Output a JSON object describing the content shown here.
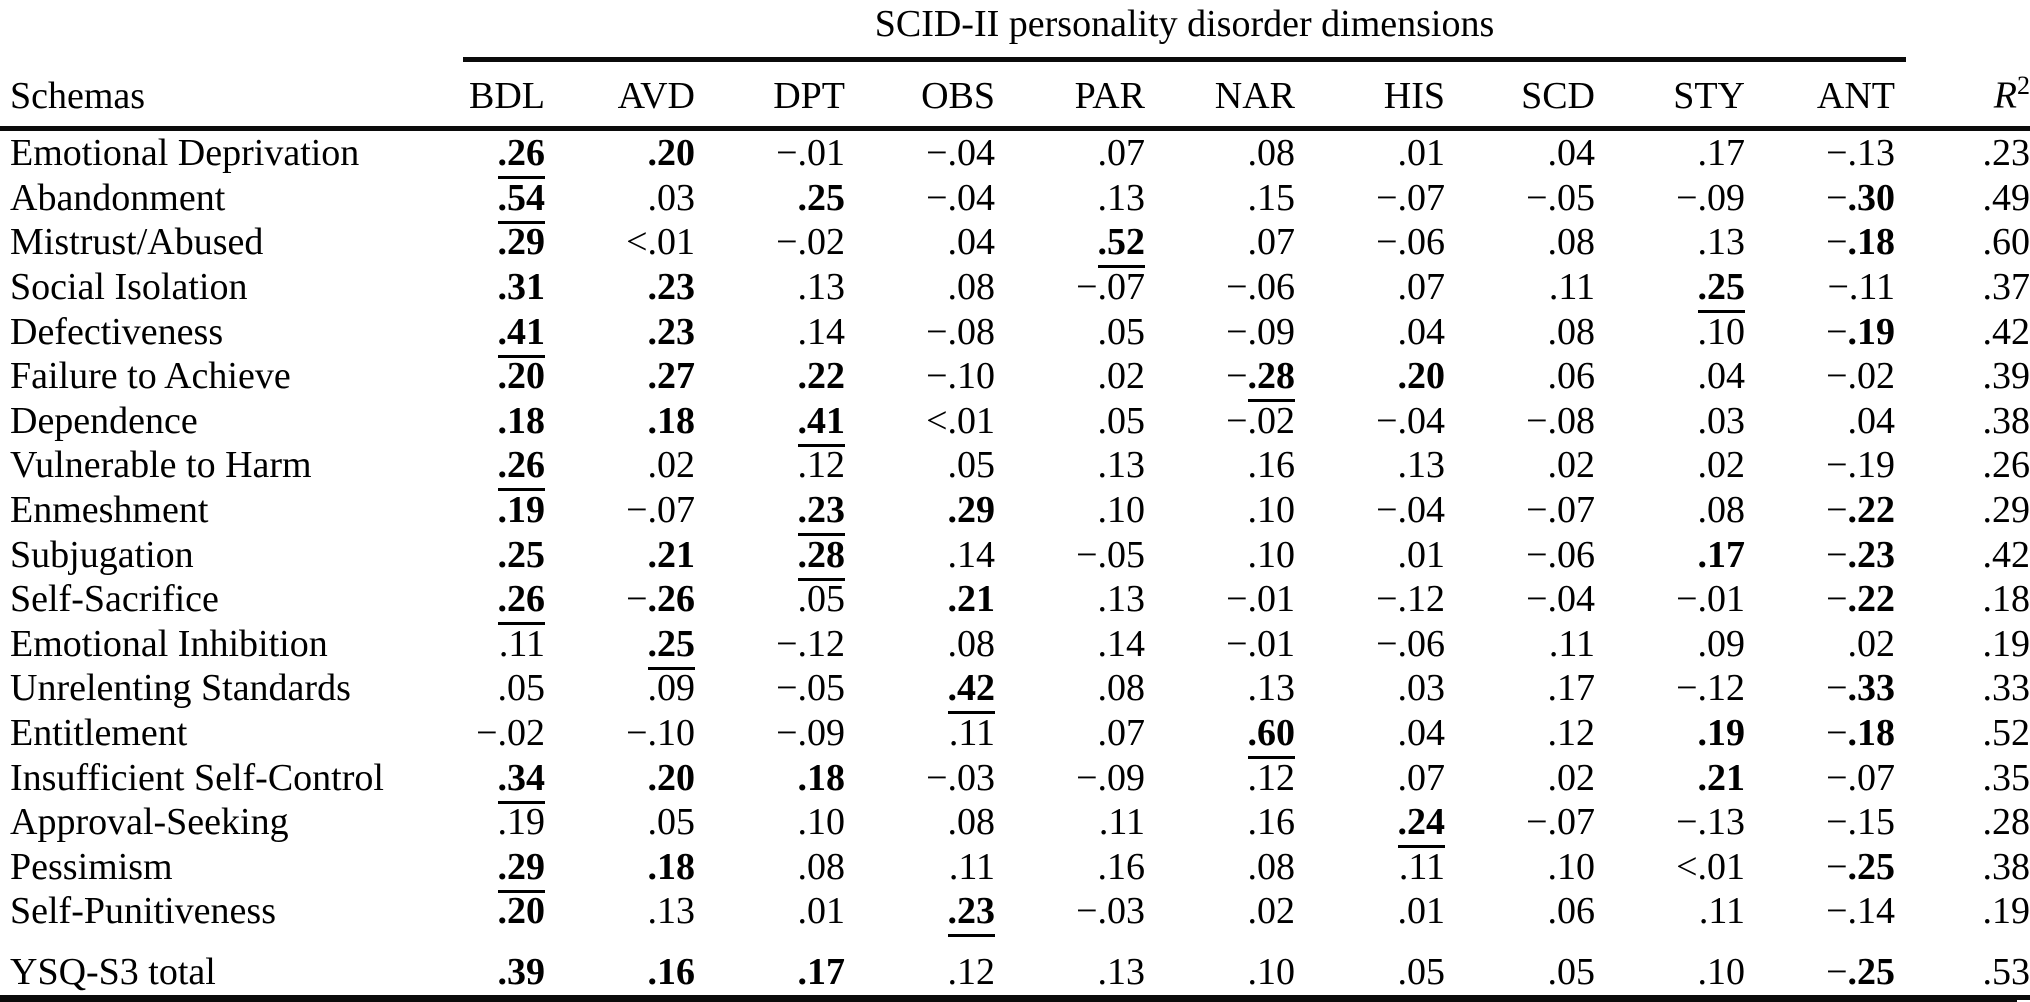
{
  "table": {
    "spanner_title": "SCID-II personality disorder dimensions",
    "schemas_header": "Schemas",
    "columns": [
      "BDL",
      "AVD",
      "DPT",
      "OBS",
      "PAR",
      "NAR",
      "HIS",
      "SCD",
      "STY",
      "ANT"
    ],
    "r2_header": {
      "base": "R",
      "sup": "2"
    },
    "rows": [
      {
        "label": "Emotional Deprivation",
        "cells": [
          {
            "v": ".26",
            "f": "bu"
          },
          {
            "v": ".20",
            "f": "b"
          },
          {
            "v": "−.01",
            "f": ""
          },
          {
            "v": "−.04",
            "f": ""
          },
          {
            "v": ".07",
            "f": ""
          },
          {
            "v": ".08",
            "f": ""
          },
          {
            "v": ".01",
            "f": ""
          },
          {
            "v": ".04",
            "f": ""
          },
          {
            "v": ".17",
            "f": ""
          },
          {
            "v": "−.13",
            "f": ""
          }
        ],
        "r2": ".23"
      },
      {
        "label": "Abandonment",
        "cells": [
          {
            "v": ".54",
            "f": "bu"
          },
          {
            "v": ".03",
            "f": ""
          },
          {
            "v": ".25",
            "f": "b"
          },
          {
            "v": "−.04",
            "f": ""
          },
          {
            "v": ".13",
            "f": ""
          },
          {
            "v": ".15",
            "f": ""
          },
          {
            "v": "−.07",
            "f": ""
          },
          {
            "v": "−.05",
            "f": ""
          },
          {
            "v": "−.09",
            "f": ""
          },
          {
            "v": "−.30",
            "f": "b"
          }
        ],
        "r2": ".49"
      },
      {
        "label": "Mistrust/Abused",
        "cells": [
          {
            "v": ".29",
            "f": "b"
          },
          {
            "v": "<.01",
            "f": ""
          },
          {
            "v": "−.02",
            "f": ""
          },
          {
            "v": ".04",
            "f": ""
          },
          {
            "v": ".52",
            "f": "bu"
          },
          {
            "v": ".07",
            "f": ""
          },
          {
            "v": "−.06",
            "f": ""
          },
          {
            "v": ".08",
            "f": ""
          },
          {
            "v": ".13",
            "f": ""
          },
          {
            "v": "−.18",
            "f": "b"
          }
        ],
        "r2": ".60"
      },
      {
        "label": "Social Isolation",
        "cells": [
          {
            "v": ".31",
            "f": "b"
          },
          {
            "v": ".23",
            "f": "b"
          },
          {
            "v": ".13",
            "f": ""
          },
          {
            "v": ".08",
            "f": ""
          },
          {
            "v": "−.07",
            "f": ""
          },
          {
            "v": "−.06",
            "f": ""
          },
          {
            "v": ".07",
            "f": ""
          },
          {
            "v": ".11",
            "f": ""
          },
          {
            "v": ".25",
            "f": "bu"
          },
          {
            "v": "−.11",
            "f": ""
          }
        ],
        "r2": ".37"
      },
      {
        "label": "Defectiveness",
        "cells": [
          {
            "v": ".41",
            "f": "bu"
          },
          {
            "v": ".23",
            "f": "b"
          },
          {
            "v": ".14",
            "f": ""
          },
          {
            "v": "−.08",
            "f": ""
          },
          {
            "v": ".05",
            "f": ""
          },
          {
            "v": "−.09",
            "f": ""
          },
          {
            "v": ".04",
            "f": ""
          },
          {
            "v": ".08",
            "f": ""
          },
          {
            "v": ".10",
            "f": ""
          },
          {
            "v": "−.19",
            "f": "b"
          }
        ],
        "r2": ".42"
      },
      {
        "label": "Failure to Achieve",
        "cells": [
          {
            "v": ".20",
            "f": "b"
          },
          {
            "v": ".27",
            "f": "b"
          },
          {
            "v": ".22",
            "f": "b"
          },
          {
            "v": "−.10",
            "f": ""
          },
          {
            "v": ".02",
            "f": ""
          },
          {
            "v": "−.28",
            "f": "bu"
          },
          {
            "v": ".20",
            "f": "b"
          },
          {
            "v": ".06",
            "f": ""
          },
          {
            "v": ".04",
            "f": ""
          },
          {
            "v": "−.02",
            "f": ""
          }
        ],
        "r2": ".39"
      },
      {
        "label": "Dependence",
        "cells": [
          {
            "v": ".18",
            "f": "b"
          },
          {
            "v": ".18",
            "f": "b"
          },
          {
            "v": ".41",
            "f": "bu"
          },
          {
            "v": "<.01",
            "f": ""
          },
          {
            "v": ".05",
            "f": ""
          },
          {
            "v": "−.02",
            "f": ""
          },
          {
            "v": "−.04",
            "f": ""
          },
          {
            "v": "−.08",
            "f": ""
          },
          {
            "v": ".03",
            "f": ""
          },
          {
            "v": ".04",
            "f": ""
          }
        ],
        "r2": ".38"
      },
      {
        "label": "Vulnerable to Harm",
        "cells": [
          {
            "v": ".26",
            "f": "bu"
          },
          {
            "v": ".02",
            "f": ""
          },
          {
            "v": ".12",
            "f": ""
          },
          {
            "v": ".05",
            "f": ""
          },
          {
            "v": ".13",
            "f": ""
          },
          {
            "v": ".16",
            "f": ""
          },
          {
            "v": ".13",
            "f": ""
          },
          {
            "v": ".02",
            "f": ""
          },
          {
            "v": ".02",
            "f": ""
          },
          {
            "v": "−.19",
            "f": ""
          }
        ],
        "r2": ".26"
      },
      {
        "label": "Enmeshment",
        "cells": [
          {
            "v": ".19",
            "f": "b"
          },
          {
            "v": "−.07",
            "f": ""
          },
          {
            "v": ".23",
            "f": "bu"
          },
          {
            "v": ".29",
            "f": "b"
          },
          {
            "v": ".10",
            "f": ""
          },
          {
            "v": ".10",
            "f": ""
          },
          {
            "v": "−.04",
            "f": ""
          },
          {
            "v": "−.07",
            "f": ""
          },
          {
            "v": ".08",
            "f": ""
          },
          {
            "v": "−.22",
            "f": "b"
          }
        ],
        "r2": ".29"
      },
      {
        "label": "Subjugation",
        "cells": [
          {
            "v": ".25",
            "f": "b"
          },
          {
            "v": ".21",
            "f": "b"
          },
          {
            "v": ".28",
            "f": "bu"
          },
          {
            "v": ".14",
            "f": ""
          },
          {
            "v": "−.05",
            "f": ""
          },
          {
            "v": ".10",
            "f": ""
          },
          {
            "v": ".01",
            "f": ""
          },
          {
            "v": "−.06",
            "f": ""
          },
          {
            "v": ".17",
            "f": "b"
          },
          {
            "v": "−.23",
            "f": "b"
          }
        ],
        "r2": ".42"
      },
      {
        "label": "Self-Sacrifice",
        "cells": [
          {
            "v": ".26",
            "f": "bu"
          },
          {
            "v": "−.26",
            "f": "b"
          },
          {
            "v": ".05",
            "f": ""
          },
          {
            "v": ".21",
            "f": "b"
          },
          {
            "v": ".13",
            "f": ""
          },
          {
            "v": "−.01",
            "f": ""
          },
          {
            "v": "−.12",
            "f": ""
          },
          {
            "v": "−.04",
            "f": ""
          },
          {
            "v": "−.01",
            "f": ""
          },
          {
            "v": "−.22",
            "f": "b"
          }
        ],
        "r2": ".18"
      },
      {
        "label": "Emotional Inhibition",
        "cells": [
          {
            "v": ".11",
            "f": ""
          },
          {
            "v": ".25",
            "f": "bu"
          },
          {
            "v": "−.12",
            "f": ""
          },
          {
            "v": ".08",
            "f": ""
          },
          {
            "v": ".14",
            "f": ""
          },
          {
            "v": "−.01",
            "f": ""
          },
          {
            "v": "−.06",
            "f": ""
          },
          {
            "v": ".11",
            "f": ""
          },
          {
            "v": ".09",
            "f": ""
          },
          {
            "v": ".02",
            "f": ""
          }
        ],
        "r2": ".19"
      },
      {
        "label": "Unrelenting Standards",
        "cells": [
          {
            "v": ".05",
            "f": ""
          },
          {
            "v": ".09",
            "f": ""
          },
          {
            "v": "−.05",
            "f": ""
          },
          {
            "v": ".42",
            "f": "bu"
          },
          {
            "v": ".08",
            "f": ""
          },
          {
            "v": ".13",
            "f": ""
          },
          {
            "v": ".03",
            "f": ""
          },
          {
            "v": ".17",
            "f": ""
          },
          {
            "v": "−.12",
            "f": ""
          },
          {
            "v": "−.33",
            "f": "b"
          }
        ],
        "r2": ".33"
      },
      {
        "label": "Entitlement",
        "cells": [
          {
            "v": "−.02",
            "f": ""
          },
          {
            "v": "−.10",
            "f": ""
          },
          {
            "v": "−.09",
            "f": ""
          },
          {
            "v": ".11",
            "f": ""
          },
          {
            "v": ".07",
            "f": ""
          },
          {
            "v": ".60",
            "f": "bu"
          },
          {
            "v": ".04",
            "f": ""
          },
          {
            "v": ".12",
            "f": ""
          },
          {
            "v": ".19",
            "f": "b"
          },
          {
            "v": "−.18",
            "f": "b"
          }
        ],
        "r2": ".52"
      },
      {
        "label": "Insufficient Self-Control",
        "cells": [
          {
            "v": ".34",
            "f": "bu"
          },
          {
            "v": ".20",
            "f": "b"
          },
          {
            "v": ".18",
            "f": "b"
          },
          {
            "v": "−.03",
            "f": ""
          },
          {
            "v": "−.09",
            "f": ""
          },
          {
            "v": ".12",
            "f": ""
          },
          {
            "v": ".07",
            "f": ""
          },
          {
            "v": ".02",
            "f": ""
          },
          {
            "v": ".21",
            "f": "b"
          },
          {
            "v": "−.07",
            "f": ""
          }
        ],
        "r2": ".35"
      },
      {
        "label": "Approval-Seeking",
        "cells": [
          {
            "v": ".19",
            "f": ""
          },
          {
            "v": ".05",
            "f": ""
          },
          {
            "v": ".10",
            "f": ""
          },
          {
            "v": ".08",
            "f": ""
          },
          {
            "v": ".11",
            "f": ""
          },
          {
            "v": ".16",
            "f": ""
          },
          {
            "v": ".24",
            "f": "bu"
          },
          {
            "v": "−.07",
            "f": ""
          },
          {
            "v": "−.13",
            "f": ""
          },
          {
            "v": "−.15",
            "f": ""
          }
        ],
        "r2": ".28"
      },
      {
        "label": "Pessimism",
        "cells": [
          {
            "v": ".29",
            "f": "bu"
          },
          {
            "v": ".18",
            "f": "b"
          },
          {
            "v": ".08",
            "f": ""
          },
          {
            "v": ".11",
            "f": ""
          },
          {
            "v": ".16",
            "f": ""
          },
          {
            "v": ".08",
            "f": ""
          },
          {
            "v": ".11",
            "f": ""
          },
          {
            "v": ".10",
            "f": ""
          },
          {
            "v": "<.01",
            "f": ""
          },
          {
            "v": "−.25",
            "f": "b"
          }
        ],
        "r2": ".38"
      },
      {
        "label": "Self-Punitiveness",
        "cells": [
          {
            "v": ".20",
            "f": "b"
          },
          {
            "v": ".13",
            "f": ""
          },
          {
            "v": ".01",
            "f": ""
          },
          {
            "v": ".23",
            "f": "bu"
          },
          {
            "v": "−.03",
            "f": ""
          },
          {
            "v": ".02",
            "f": ""
          },
          {
            "v": ".01",
            "f": ""
          },
          {
            "v": ".06",
            "f": ""
          },
          {
            "v": ".11",
            "f": ""
          },
          {
            "v": "−.14",
            "f": ""
          }
        ],
        "r2": ".19"
      }
    ],
    "total_row": {
      "label": "YSQ-S3 total",
      "cells": [
        {
          "v": ".39",
          "f": "b"
        },
        {
          "v": ".16",
          "f": "b"
        },
        {
          "v": ".17",
          "f": "b"
        },
        {
          "v": ".12",
          "f": ""
        },
        {
          "v": ".13",
          "f": ""
        },
        {
          "v": ".10",
          "f": ""
        },
        {
          "v": ".05",
          "f": ""
        },
        {
          "v": ".05",
          "f": ""
        },
        {
          "v": ".10",
          "f": ""
        },
        {
          "v": "−.25",
          "f": "b"
        }
      ],
      "r2": ".53"
    }
  }
}
